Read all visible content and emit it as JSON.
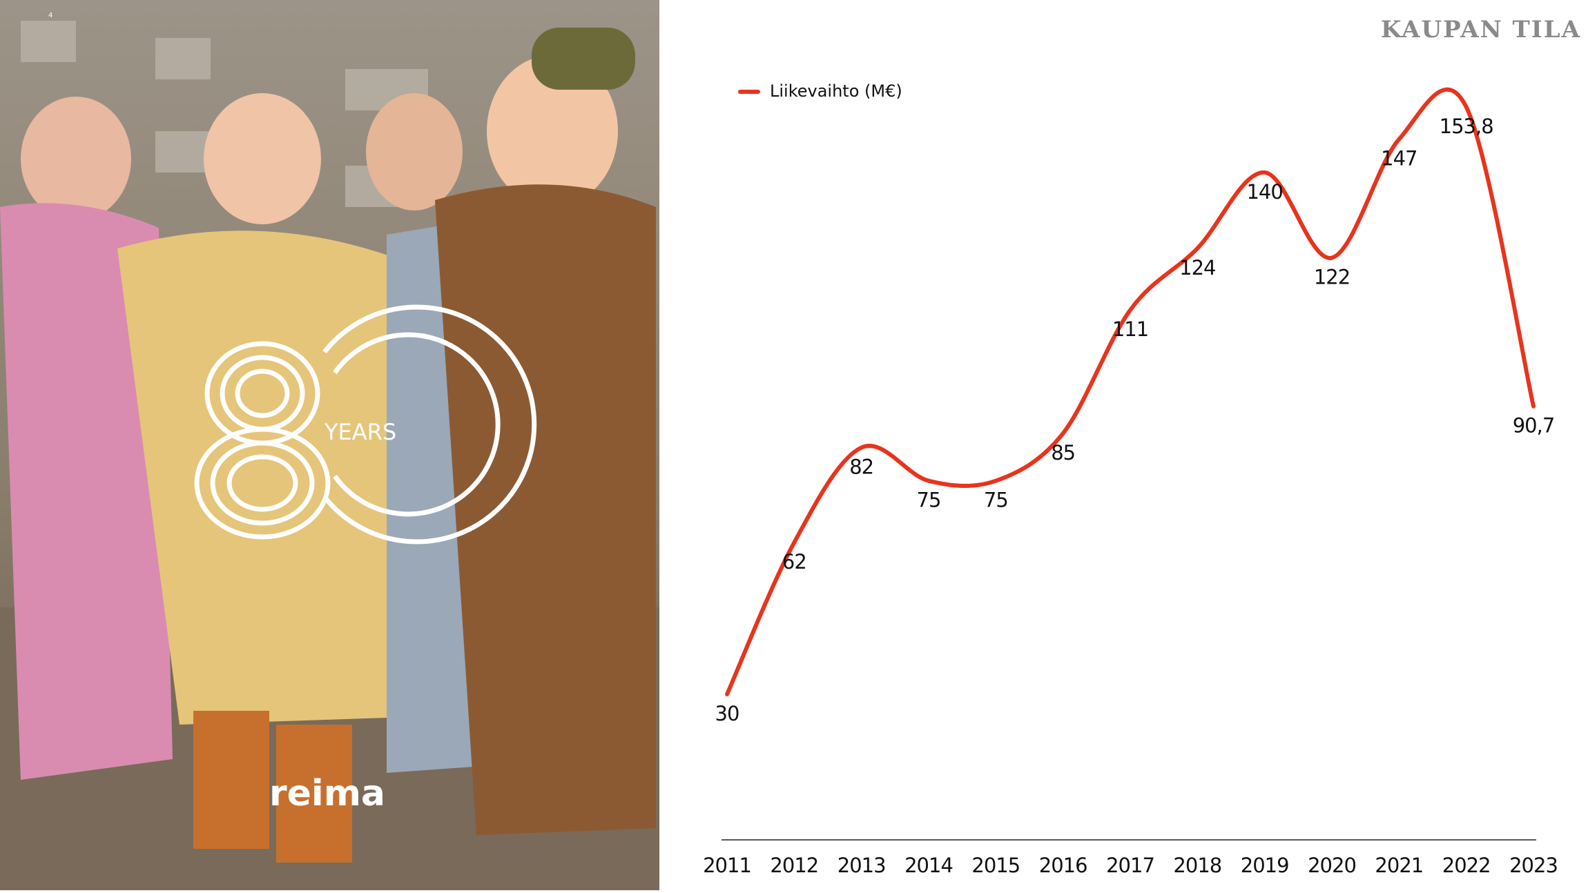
{
  "photo": {
    "page_number": "4",
    "logo_years": "YEARS",
    "brand": "reima"
  },
  "chart_data": {
    "type": "line",
    "title": "KAUPAN TILA",
    "categories": [
      "2011",
      "2012",
      "2013",
      "2014",
      "2015",
      "2016",
      "2017",
      "2018",
      "2019",
      "2020",
      "2021",
      "2022",
      "2023"
    ],
    "series": [
      {
        "name": "Liikevaihto (M€)",
        "color": "#e8341c",
        "values": [
          30,
          62,
          82,
          75,
          75,
          85,
          111,
          124,
          140,
          122,
          147,
          153.8,
          90.7
        ],
        "value_labels": [
          "30",
          "62",
          "82",
          "75",
          "75",
          "85",
          "111",
          "124",
          "140",
          "122",
          "147",
          "153,8",
          "90,7"
        ]
      }
    ],
    "legend": "top-left"
  }
}
